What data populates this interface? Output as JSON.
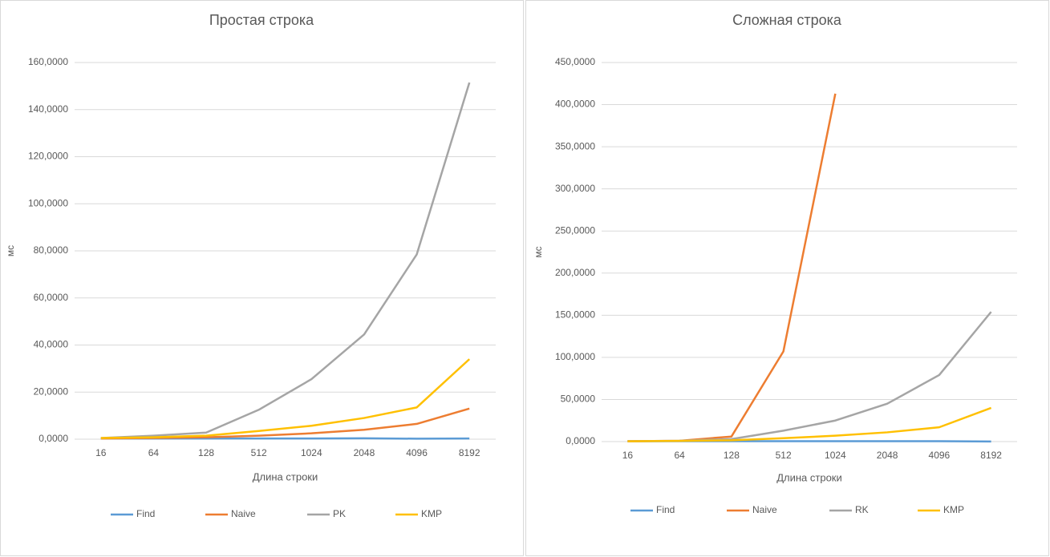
{
  "chart_data": [
    {
      "type": "line",
      "title": "Простая строка",
      "ylabel": "мс",
      "xlabel": "Длина строки",
      "categories": [
        "16",
        "64",
        "128",
        "512",
        "1024",
        "2048",
        "4096",
        "8192"
      ],
      "series": [
        {
          "name": "Find",
          "color": "#5b9bd5",
          "values": [
            0.3,
            0.3,
            0.3,
            0.3,
            0.3,
            0.4,
            0.2,
            0.3
          ]
        },
        {
          "name": "Naive",
          "color": "#ed7d31",
          "values": [
            0.3,
            0.5,
            0.8,
            1.5,
            2.5,
            4,
            6.5,
            13
          ]
        },
        {
          "name": "PK",
          "color": "#a5a5a5",
          "values": [
            0.5,
            1.5,
            2.8,
            12.5,
            25.5,
            44.5,
            78.5,
            151.5
          ]
        },
        {
          "name": "KMP",
          "color": "#ffc000",
          "values": [
            0.5,
            0.8,
            1.5,
            3.5,
            5.7,
            9,
            13.5,
            34
          ]
        }
      ],
      "ylim": [
        0,
        160
      ],
      "yticks": [
        {
          "value": 0,
          "label": "0,0000"
        },
        {
          "value": 20,
          "label": "20,0000"
        },
        {
          "value": 40,
          "label": "40,0000"
        },
        {
          "value": 60,
          "label": "60,0000"
        },
        {
          "value": 80,
          "label": "80,0000"
        },
        {
          "value": 100,
          "label": "100,0000"
        },
        {
          "value": 120,
          "label": "120,0000"
        },
        {
          "value": 140,
          "label": "140,0000"
        },
        {
          "value": 160,
          "label": "160,0000"
        }
      ],
      "grid": true,
      "legend": "bottom"
    },
    {
      "type": "line",
      "title": "Сложная строка",
      "ylabel": "мс",
      "xlabel": "Длина строки",
      "categories": [
        "16",
        "64",
        "128",
        "512",
        "1024",
        "2048",
        "4096",
        "8192"
      ],
      "series": [
        {
          "name": "Find",
          "color": "#5b9bd5",
          "values": [
            0.3,
            0.5,
            0.5,
            0.5,
            0.5,
            0.5,
            0.5,
            0.1
          ]
        },
        {
          "name": "Naive",
          "color": "#ed7d31",
          "values": [
            0.5,
            1,
            6,
            107,
            413,
            null,
            null,
            null
          ]
        },
        {
          "name": "RK",
          "color": "#a5a5a5",
          "values": [
            0.5,
            1,
            3,
            13,
            25,
            45,
            79,
            154
          ]
        },
        {
          "name": "KMP",
          "color": "#ffc000",
          "values": [
            0.3,
            0.8,
            1.5,
            4,
            7,
            11,
            17,
            40
          ]
        }
      ],
      "ylim": [
        0,
        450
      ],
      "yticks": [
        {
          "value": 0,
          "label": "0,0000"
        },
        {
          "value": 50,
          "label": "50,0000"
        },
        {
          "value": 100,
          "label": "100,0000"
        },
        {
          "value": 150,
          "label": "150,0000"
        },
        {
          "value": 200,
          "label": "200,0000"
        },
        {
          "value": 250,
          "label": "250,0000"
        },
        {
          "value": 300,
          "label": "300,0000"
        },
        {
          "value": 350,
          "label": "350,0000"
        },
        {
          "value": 400,
          "label": "400,0000"
        },
        {
          "value": 450,
          "label": "450,0000"
        }
      ],
      "grid": true,
      "legend": "bottom"
    }
  ]
}
